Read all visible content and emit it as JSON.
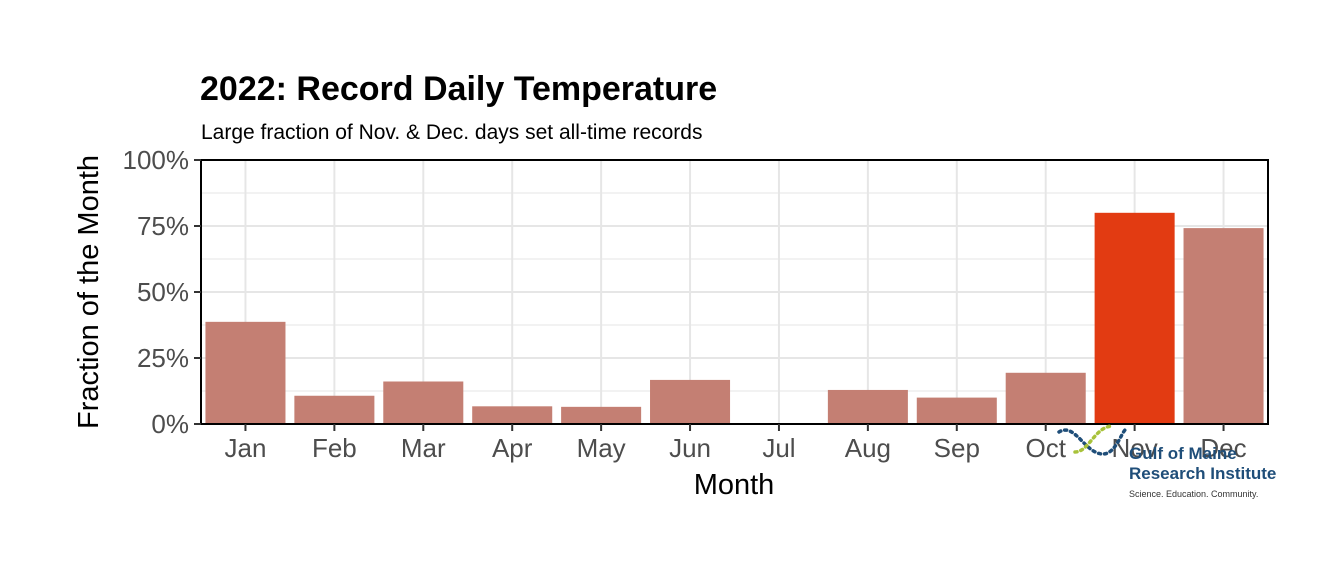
{
  "colors": {
    "bar": "#c47f73",
    "highlight": "#e23b12",
    "grid": "#e6e6e6",
    "panel_border": "#000000",
    "logo_blue": "#1f4e79",
    "logo_green": "#a8c23a"
  },
  "logo": {
    "line1": "Gulf of Maine",
    "line2": "Research Institute",
    "line3": "Science. Education. Community."
  },
  "chart_data": {
    "type": "bar",
    "title": "2022: Record Daily Temperature",
    "subtitle": "Large fraction of Nov. & Dec. days set all-time records",
    "xlabel": "Month",
    "ylabel": "Fraction of the Month",
    "categories": [
      "Jan",
      "Feb",
      "Mar",
      "Apr",
      "May",
      "Jun",
      "Jul",
      "Aug",
      "Sep",
      "Oct",
      "Nov",
      "Dec"
    ],
    "values": [
      0.387,
      0.107,
      0.161,
      0.067,
      0.065,
      0.167,
      0.0,
      0.129,
      0.1,
      0.194,
      0.8,
      0.742
    ],
    "highlight": "Nov",
    "ylim": [
      0,
      1
    ],
    "yticks": [
      0,
      0.25,
      0.5,
      0.75,
      1
    ],
    "ytick_labels": [
      "0%",
      "25%",
      "50%",
      "75%",
      "100%"
    ],
    "grid": true,
    "legend": "none"
  }
}
